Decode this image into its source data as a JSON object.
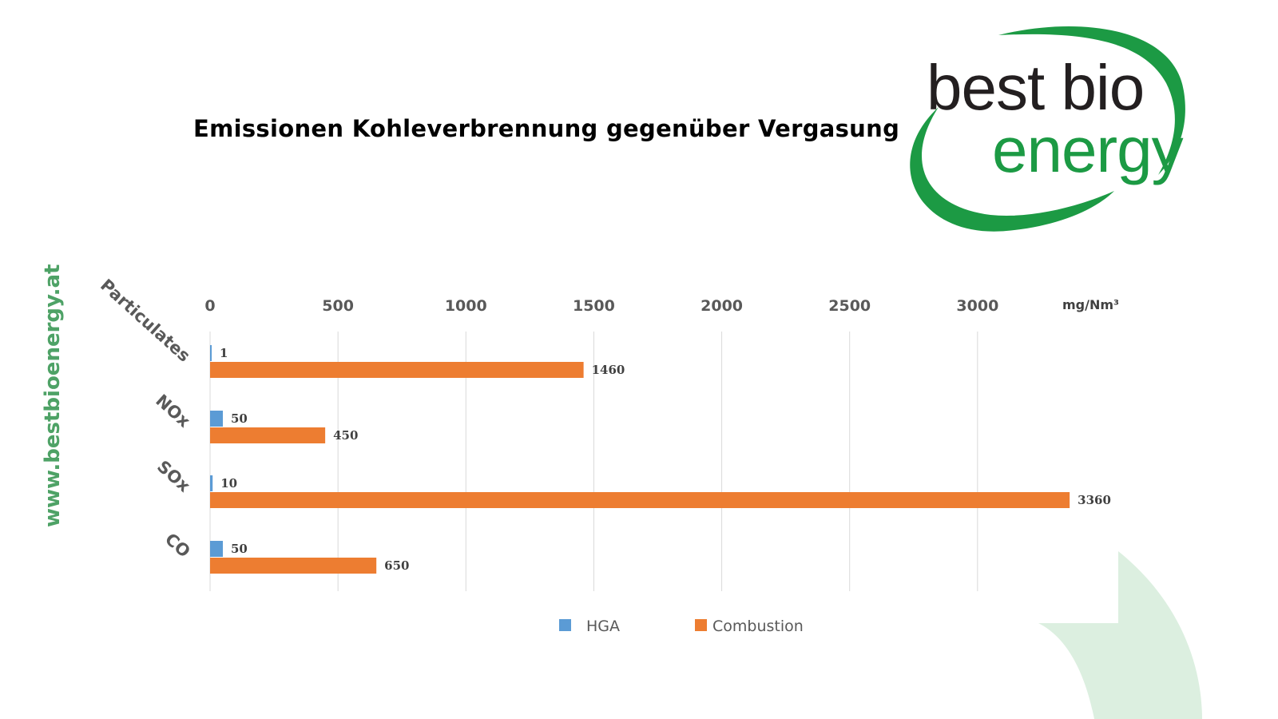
{
  "slide": {
    "title": "Emissionen Kohleverbrennung gegenüber Vergasung",
    "side_url": "www.bestbioenergy.at"
  },
  "logo": {
    "line1": "best bio",
    "line2": "energy",
    "colors": {
      "dark": "#231f20",
      "green": "#1c9a44",
      "light_green": "#dcefe0"
    }
  },
  "chart_data": {
    "type": "bar",
    "orientation": "horizontal",
    "categories": [
      "Particulates",
      "NOx",
      "SOx",
      "CO"
    ],
    "series": [
      {
        "name": "HGA",
        "color": "#5b9bd5",
        "values": [
          1,
          50,
          10,
          50
        ]
      },
      {
        "name": "Combustion",
        "color": "#ed7d31",
        "values": [
          1460,
          450,
          3360,
          650
        ]
      }
    ],
    "xlim": [
      0,
      3500
    ],
    "x_ticks": [
      "0",
      "500",
      "1000",
      "1500",
      "2000",
      "2500",
      "3000"
    ],
    "x_tick_values": [
      0,
      500,
      1000,
      1500,
      2000,
      2500,
      3000
    ],
    "unit_label": "mg/Nm³",
    "axis_position": "top",
    "grid": true,
    "legend": "bottom",
    "data_labels": true
  }
}
